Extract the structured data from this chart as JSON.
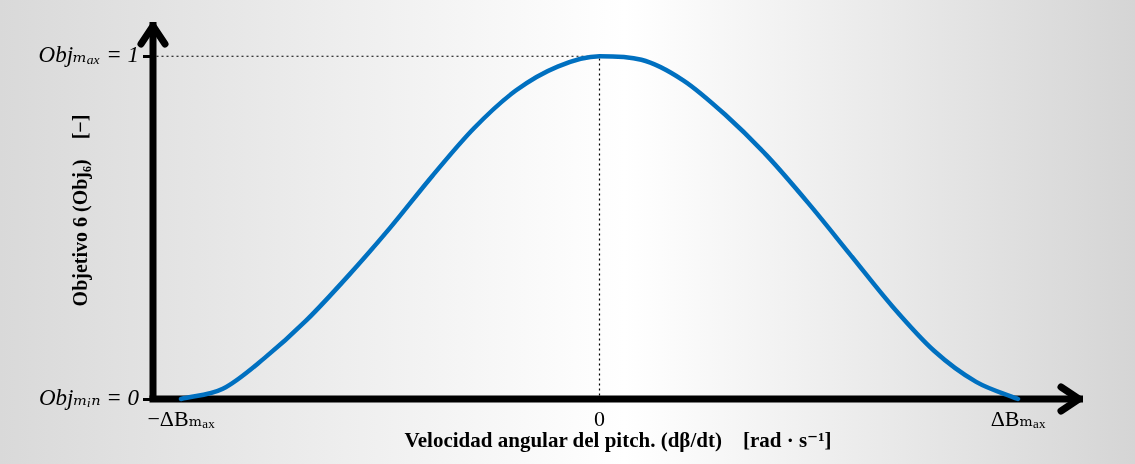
{
  "chart_data": {
    "type": "line",
    "xlabel": "Velocidad angular del pitch. (dβ/dt)    [rad · s⁻¹]",
    "ylabel": "Objetivo 6 (Obj₆)    [−]",
    "categories": [
      "−ΔBₘₐₓ",
      null,
      null,
      null,
      null,
      null,
      null,
      null,
      null,
      null,
      "0",
      null,
      null,
      null,
      null,
      null,
      null,
      null,
      null,
      null,
      "ΔBₘₐₓ"
    ],
    "values": [
      0,
      0.03,
      0.12,
      0.23,
      0.36,
      0.5,
      0.65,
      0.79,
      0.9,
      0.97,
      1,
      0.99,
      0.93,
      0.83,
      0.71,
      0.57,
      0.42,
      0.27,
      0.14,
      0.05,
      0
    ],
    "color": "#0070c0",
    "ylim": [
      0,
      1.1
    ],
    "yticks": [
      {
        "value": 0,
        "label": "Objₘᵢₙ = 0"
      },
      {
        "value": 1,
        "label": "Objₘₐₓ = 1"
      }
    ],
    "ref_lines": [
      {
        "axis": "y",
        "value": 1,
        "color": "#000000",
        "line_style": "dotted"
      },
      {
        "axis": "x",
        "value": "0",
        "color": "#000000",
        "line_style": "dotted"
      }
    ],
    "grid": false,
    "legend": false,
    "marker": "none",
    "line_style": "solid"
  }
}
